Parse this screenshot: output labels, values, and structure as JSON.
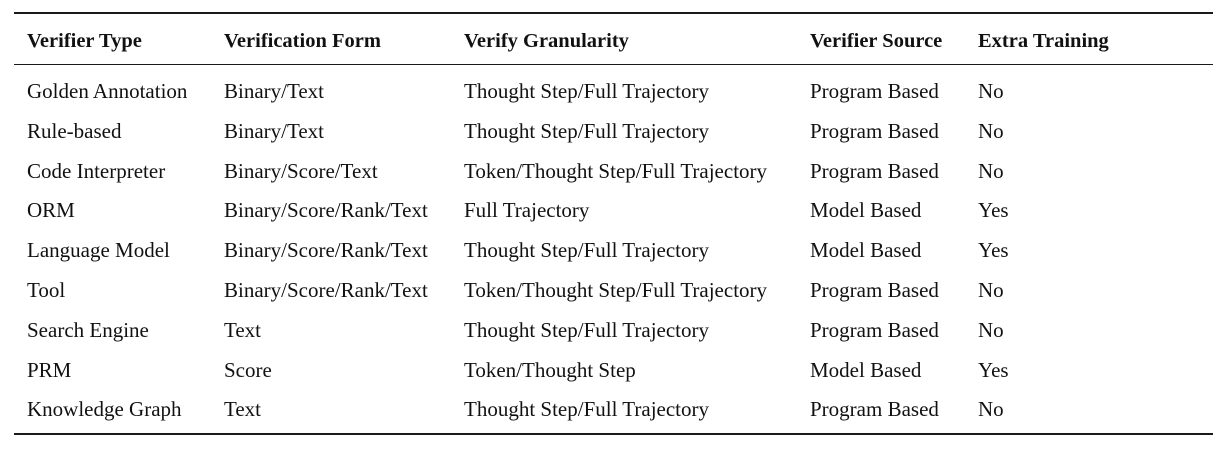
{
  "table": {
    "headers": [
      "Verifier Type",
      "Verification Form",
      "Verify Granularity",
      "Verifier Source",
      "Extra Training"
    ],
    "rows": [
      [
        "Golden Annotation",
        "Binary/Text",
        "Thought Step/Full Trajectory",
        "Program Based",
        "No"
      ],
      [
        "Rule-based",
        "Binary/Text",
        "Thought Step/Full Trajectory",
        "Program Based",
        "No"
      ],
      [
        "Code Interpreter",
        "Binary/Score/Text",
        "Token/Thought Step/Full Trajectory",
        "Program Based",
        "No"
      ],
      [
        "ORM",
        "Binary/Score/Rank/Text",
        "Full Trajectory",
        "Model Based",
        "Yes"
      ],
      [
        "Language Model",
        "Binary/Score/Rank/Text",
        "Thought Step/Full Trajectory",
        "Model Based",
        "Yes"
      ],
      [
        "Tool",
        "Binary/Score/Rank/Text",
        "Token/Thought Step/Full Trajectory",
        "Program Based",
        "No"
      ],
      [
        "Search Engine",
        "Text",
        "Thought Step/Full Trajectory",
        "Program Based",
        "No"
      ],
      [
        "PRM",
        "Score",
        "Token/Thought Step",
        "Model Based",
        "Yes"
      ],
      [
        "Knowledge Graph",
        "Text",
        "Thought Step/Full Trajectory",
        "Program Based",
        "No"
      ]
    ]
  }
}
